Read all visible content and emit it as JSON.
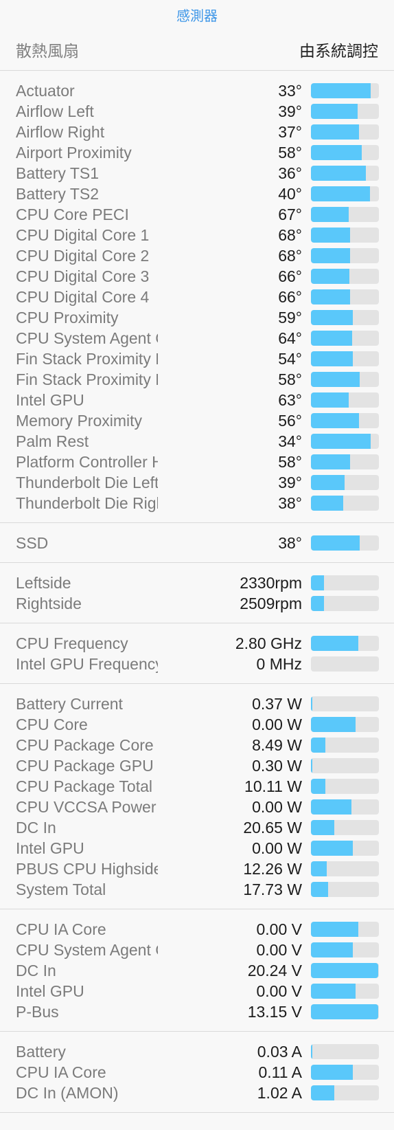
{
  "header": {
    "title": "感測器"
  },
  "fan": {
    "label": "散熱風扇",
    "value": "由系統調控"
  },
  "colors": {
    "accent": "#3f97e8",
    "bar_fill": "#5ac8fa",
    "bar_track": "#e3e3e3"
  },
  "sections": [
    {
      "name": "temperatures",
      "items": [
        {
          "label": "Actuator",
          "value": "33°",
          "level": 0.88
        },
        {
          "label": "Airflow Left",
          "value": "39°",
          "level": 0.69
        },
        {
          "label": "Airflow Right",
          "value": "37°",
          "level": 0.71
        },
        {
          "label": "Airport Proximity",
          "value": "58°",
          "level": 0.75
        },
        {
          "label": "Battery TS1",
          "value": "36°",
          "level": 0.81
        },
        {
          "label": "Battery TS2",
          "value": "40°",
          "level": 0.87
        },
        {
          "label": "CPU Core PECI",
          "value": "67°",
          "level": 0.56
        },
        {
          "label": "CPU Digital Core 1",
          "value": "68°",
          "level": 0.58
        },
        {
          "label": "CPU Digital Core 2",
          "value": "68°",
          "level": 0.58
        },
        {
          "label": "CPU Digital Core 3",
          "value": "66°",
          "level": 0.57
        },
        {
          "label": "CPU Digital Core 4",
          "value": "66°",
          "level": 0.58
        },
        {
          "label": "CPU Proximity",
          "value": "59°",
          "level": 0.62
        },
        {
          "label": "CPU System Agent Core",
          "value": "64°",
          "level": 0.61
        },
        {
          "label": "Fin Stack Proximity Left",
          "value": "54°",
          "level": 0.62
        },
        {
          "label": "Fin Stack Proximity Right",
          "value": "58°",
          "level": 0.72
        },
        {
          "label": "Intel GPU",
          "value": "63°",
          "level": 0.56
        },
        {
          "label": "Memory Proximity",
          "value": "56°",
          "level": 0.71
        },
        {
          "label": "Palm Rest",
          "value": "34°",
          "level": 0.88
        },
        {
          "label": "Platform Controller Hub Die",
          "value": "58°",
          "level": 0.58
        },
        {
          "label": "Thunderbolt Die Left",
          "value": "39°",
          "level": 0.49
        },
        {
          "label": "Thunderbolt Die Right",
          "value": "38°",
          "level": 0.47
        }
      ]
    },
    {
      "name": "storage",
      "items": [
        {
          "label": "SSD",
          "value": "38°",
          "level": 0.72
        }
      ]
    },
    {
      "name": "fans",
      "items": [
        {
          "label": "Leftside",
          "value": "2330rpm",
          "level": 0.19
        },
        {
          "label": "Rightside",
          "value": "2509rpm",
          "level": 0.19
        }
      ]
    },
    {
      "name": "frequencies",
      "items": [
        {
          "label": "CPU Frequency",
          "value": "2.80 GHz",
          "level": 0.7
        },
        {
          "label": "Intel GPU Frequency",
          "value": "0 MHz",
          "level": 0.0
        }
      ]
    },
    {
      "name": "power",
      "items": [
        {
          "label": "Battery Current",
          "value": "0.37 W",
          "level": 0.02
        },
        {
          "label": "CPU Core",
          "value": "0.00 W",
          "level": 0.66
        },
        {
          "label": "CPU Package Core",
          "value": "8.49 W",
          "level": 0.21
        },
        {
          "label": "CPU Package GPU",
          "value": "0.30 W",
          "level": 0.02
        },
        {
          "label": "CPU Package Total",
          "value": "10.11 W",
          "level": 0.21
        },
        {
          "label": "CPU VCCSA Power",
          "value": "0.00 W",
          "level": 0.6
        },
        {
          "label": "DC In",
          "value": "20.65 W",
          "level": 0.34
        },
        {
          "label": "Intel GPU",
          "value": "0.00 W",
          "level": 0.62
        },
        {
          "label": "PBUS CPU Highside",
          "value": "12.26 W",
          "level": 0.23
        },
        {
          "label": "System Total",
          "value": "17.73 W",
          "level": 0.25
        }
      ]
    },
    {
      "name": "voltages",
      "items": [
        {
          "label": "CPU IA Core",
          "value": "0.00 V",
          "level": 0.7
        },
        {
          "label": "CPU System Agent Core",
          "value": "0.00 V",
          "level": 0.62
        },
        {
          "label": "DC In",
          "value": "20.24 V",
          "level": 0.99
        },
        {
          "label": "Intel GPU",
          "value": "0.00 V",
          "level": 0.66
        },
        {
          "label": "P-Bus",
          "value": "13.15 V",
          "level": 0.99
        }
      ]
    },
    {
      "name": "currents",
      "items": [
        {
          "label": "Battery",
          "value": "0.03 A",
          "level": 0.02
        },
        {
          "label": "CPU IA Core",
          "value": "0.11 A",
          "level": 0.62
        },
        {
          "label": "DC In (AMON)",
          "value": "1.02 A",
          "level": 0.34
        }
      ]
    }
  ]
}
